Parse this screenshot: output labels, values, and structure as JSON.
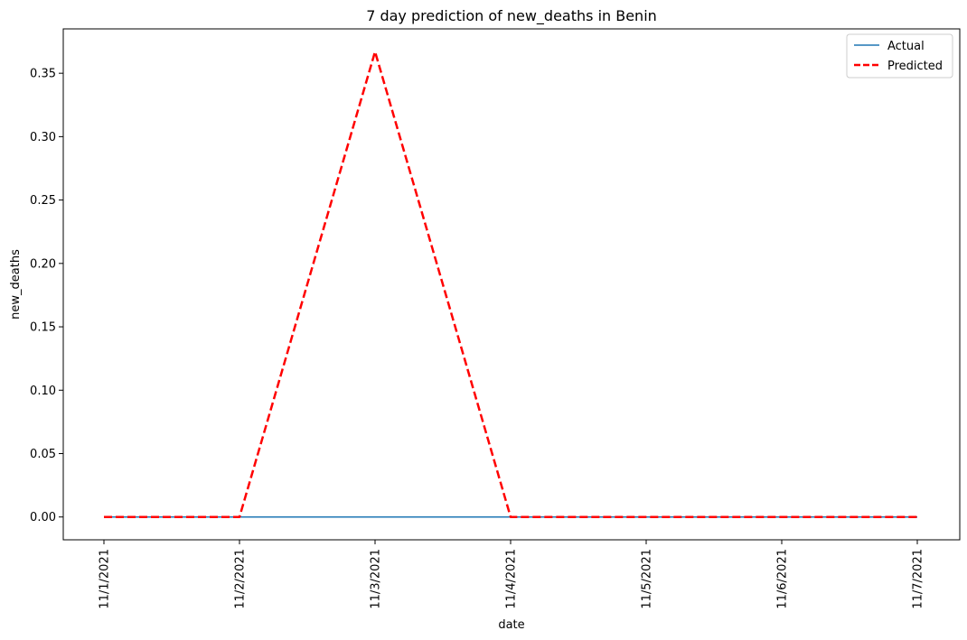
{
  "chart_data": {
    "type": "line",
    "title": "7 day prediction of new_deaths in Benin",
    "xlabel": "date",
    "ylabel": "new_deaths",
    "categories": [
      "11/1/2021",
      "11/2/2021",
      "11/3/2021",
      "11/4/2021",
      "11/5/2021",
      "11/6/2021",
      "11/7/2021"
    ],
    "series": [
      {
        "name": "Actual",
        "values": [
          0,
          0,
          0,
          0,
          0,
          0,
          0
        ],
        "color": "#1f77b4",
        "style": "solid"
      },
      {
        "name": "Predicted",
        "values": [
          0,
          0,
          0.367,
          0,
          0,
          0,
          0
        ],
        "color": "#ff0000",
        "style": "dashed"
      }
    ],
    "yticks": [
      "0.00",
      "0.05",
      "0.10",
      "0.15",
      "0.20",
      "0.25",
      "0.30",
      "0.35"
    ],
    "ylim": [
      -0.018,
      0.385
    ],
    "grid": false,
    "legend": "top-right"
  }
}
